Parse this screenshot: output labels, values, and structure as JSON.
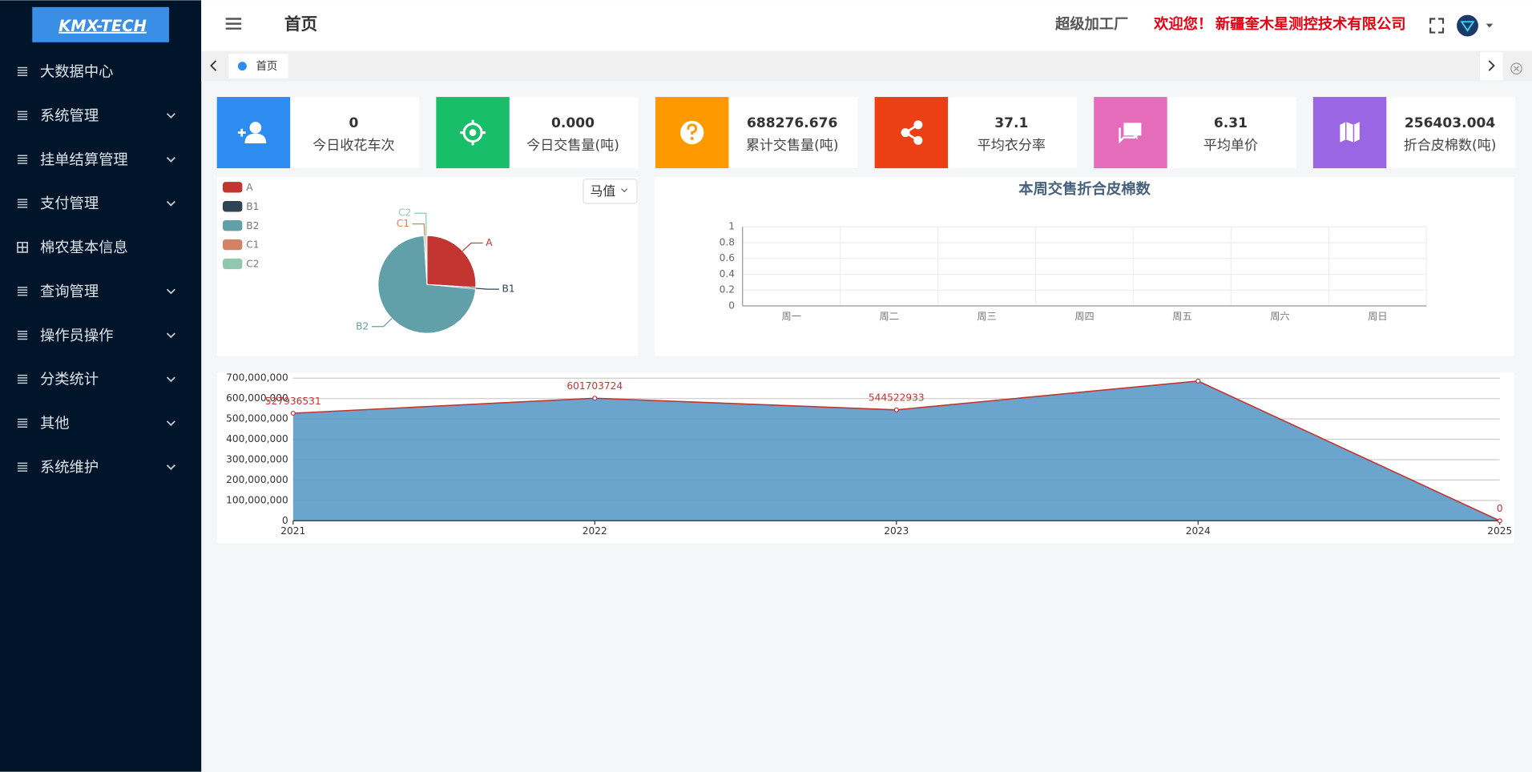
{
  "sidebar": {
    "logo": "KMX-TECH",
    "menu": [
      {
        "label": "大数据中心",
        "icon": "list",
        "expandable": false
      },
      {
        "label": "系统管理",
        "icon": "list",
        "expandable": true
      },
      {
        "label": "挂单结算管理",
        "icon": "list",
        "expandable": true
      },
      {
        "label": "支付管理",
        "icon": "list",
        "expandable": true
      },
      {
        "label": "棉农基本信息",
        "icon": "grid",
        "expandable": false
      },
      {
        "label": "查询管理",
        "icon": "list",
        "expandable": true
      },
      {
        "label": "操作员操作",
        "icon": "list",
        "expandable": true
      },
      {
        "label": "分类统计",
        "icon": "list",
        "expandable": true
      },
      {
        "label": "其他",
        "icon": "list",
        "expandable": true
      },
      {
        "label": "系统维护",
        "icon": "list",
        "expandable": true
      }
    ]
  },
  "header": {
    "title": "首页",
    "factory": "超级加工厂",
    "welcome": "欢迎您！",
    "company": "新疆奎木星测控技术有限公司"
  },
  "tabs": [
    "首页"
  ],
  "cards": [
    {
      "value": "0",
      "label": "今日收花车次",
      "color": "#2d8cf0",
      "icon": "user"
    },
    {
      "value": "0.000",
      "label": "今日交售量(吨)",
      "color": "#19be6b",
      "icon": "target"
    },
    {
      "value": "688276.676",
      "label": "累计交售量(吨)",
      "color": "#ff9900",
      "icon": "question"
    },
    {
      "value": "37.1",
      "label": "平均衣分率",
      "color": "#ed3f14",
      "icon": "share"
    },
    {
      "value": "6.31",
      "label": "平均单价",
      "color": "#e46cbb",
      "icon": "chat"
    },
    {
      "value": "256403.004",
      "label": "折合皮棉数(吨)",
      "color": "#9a66e4",
      "icon": "map"
    }
  ],
  "chart_data": [
    {
      "type": "pie",
      "dropdown": "马值",
      "legend": "top-left",
      "categories": [
        "A",
        "B1",
        "B2",
        "C1",
        "C2"
      ],
      "values": [
        26,
        0.5,
        72.5,
        0.5,
        0.5
      ],
      "colors": [
        "#c23531",
        "#2f4554",
        "#61a0a8",
        "#d48265",
        "#91c7ae"
      ]
    },
    {
      "type": "bar",
      "title": "本周交售折合皮棉数",
      "categories": [
        "周一",
        "周二",
        "周三",
        "周四",
        "周五",
        "周六",
        "周日"
      ],
      "ylim": [
        0,
        1
      ],
      "yticks": [
        0,
        0.2,
        0.4,
        0.6,
        0.8,
        1
      ],
      "grid": true
    },
    {
      "type": "area",
      "x": [
        2021,
        2022,
        2023,
        2024,
        2025
      ],
      "values": [
        527936531,
        601703724,
        544522933,
        686000000,
        0
      ],
      "value_labels": [
        "527936531",
        "601703724",
        "544522933",
        null,
        "0"
      ],
      "color": "#c23531",
      "fill": "#5b9bc8",
      "xlim": [
        2021,
        2025
      ],
      "xticks": [
        2021,
        2022,
        2023,
        2024,
        2025
      ],
      "ylim": [
        0,
        700000000
      ],
      "yticks": [
        0,
        {
          "value": 100000000,
          "label": "100,000,000"
        },
        {
          "value": 200000000,
          "label": "200,000,000"
        },
        {
          "value": 300000000,
          "label": "300,000,000"
        },
        {
          "value": 400000000,
          "label": "400,000,000"
        },
        {
          "value": 500000000,
          "label": "500,000,000"
        },
        {
          "value": 600000000,
          "label": "600,000,000"
        },
        {
          "value": 700000000,
          "label": "700,000,000"
        }
      ],
      "grid": true
    }
  ]
}
